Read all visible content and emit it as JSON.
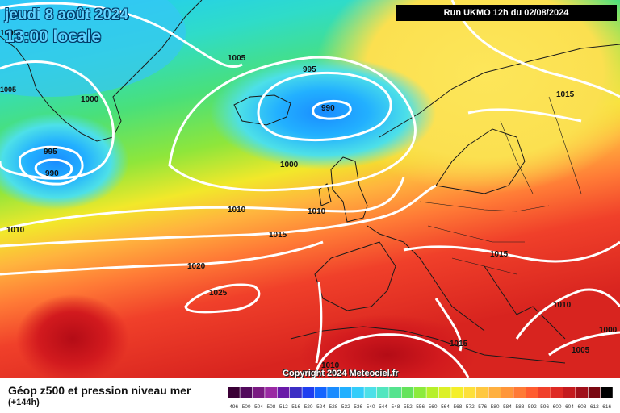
{
  "title": {
    "date": "jeudi 8 août 2024",
    "time": "13:00 locale"
  },
  "run": "Run UKMO 12h du 02/08/2024",
  "copyright": "Copyright 2024 Meteociel.fr",
  "legend": {
    "title": "Géop z500 et pression niveau mer",
    "subtitle": "(+144h)",
    "values": [
      "496",
      "500",
      "504",
      "508",
      "512",
      "516",
      "520",
      "524",
      "528",
      "532",
      "536",
      "540",
      "544",
      "548",
      "552",
      "556",
      "560",
      "564",
      "568",
      "572",
      "576",
      "580",
      "584",
      "588",
      "592",
      "596",
      "600",
      "604",
      "608",
      "612",
      "616"
    ],
    "colors": [
      "#3a0035",
      "#520a5c",
      "#7a1a82",
      "#9a2aa3",
      "#6a1aa8",
      "#3c2ec4",
      "#1f3ef0",
      "#1565ff",
      "#1a8cff",
      "#22b0ff",
      "#34cdfa",
      "#4de0e8",
      "#52e6bf",
      "#55e38e",
      "#64e35b",
      "#8ceb3c",
      "#b6f02a",
      "#dcf027",
      "#f4ef2a",
      "#fde03a",
      "#ffc840",
      "#ffb040",
      "#ff963a",
      "#ff7a36",
      "#ff5c30",
      "#f0402a",
      "#de2a24",
      "#c41a1e",
      "#a0101a",
      "#7a0812",
      "#000000"
    ]
  },
  "pressure_labels": [
    {
      "text": "1005"
    },
    {
      "text": "1005"
    },
    {
      "text": "1000"
    },
    {
      "text": "995"
    },
    {
      "text": "990"
    },
    {
      "text": "995"
    },
    {
      "text": "990"
    },
    {
      "text": "1000"
    },
    {
      "text": "1010"
    },
    {
      "text": "1010"
    },
    {
      "text": "1015"
    },
    {
      "text": "1020"
    },
    {
      "text": "1025"
    },
    {
      "text": "1010"
    },
    {
      "text": "1015"
    },
    {
      "text": "1015"
    },
    {
      "text": "1010"
    },
    {
      "text": "1015"
    },
    {
      "text": "1000"
    },
    {
      "text": "1005"
    },
    {
      "text": "1010"
    },
    {
      "text": "1010"
    },
    {
      "text": "1005"
    }
  ]
}
